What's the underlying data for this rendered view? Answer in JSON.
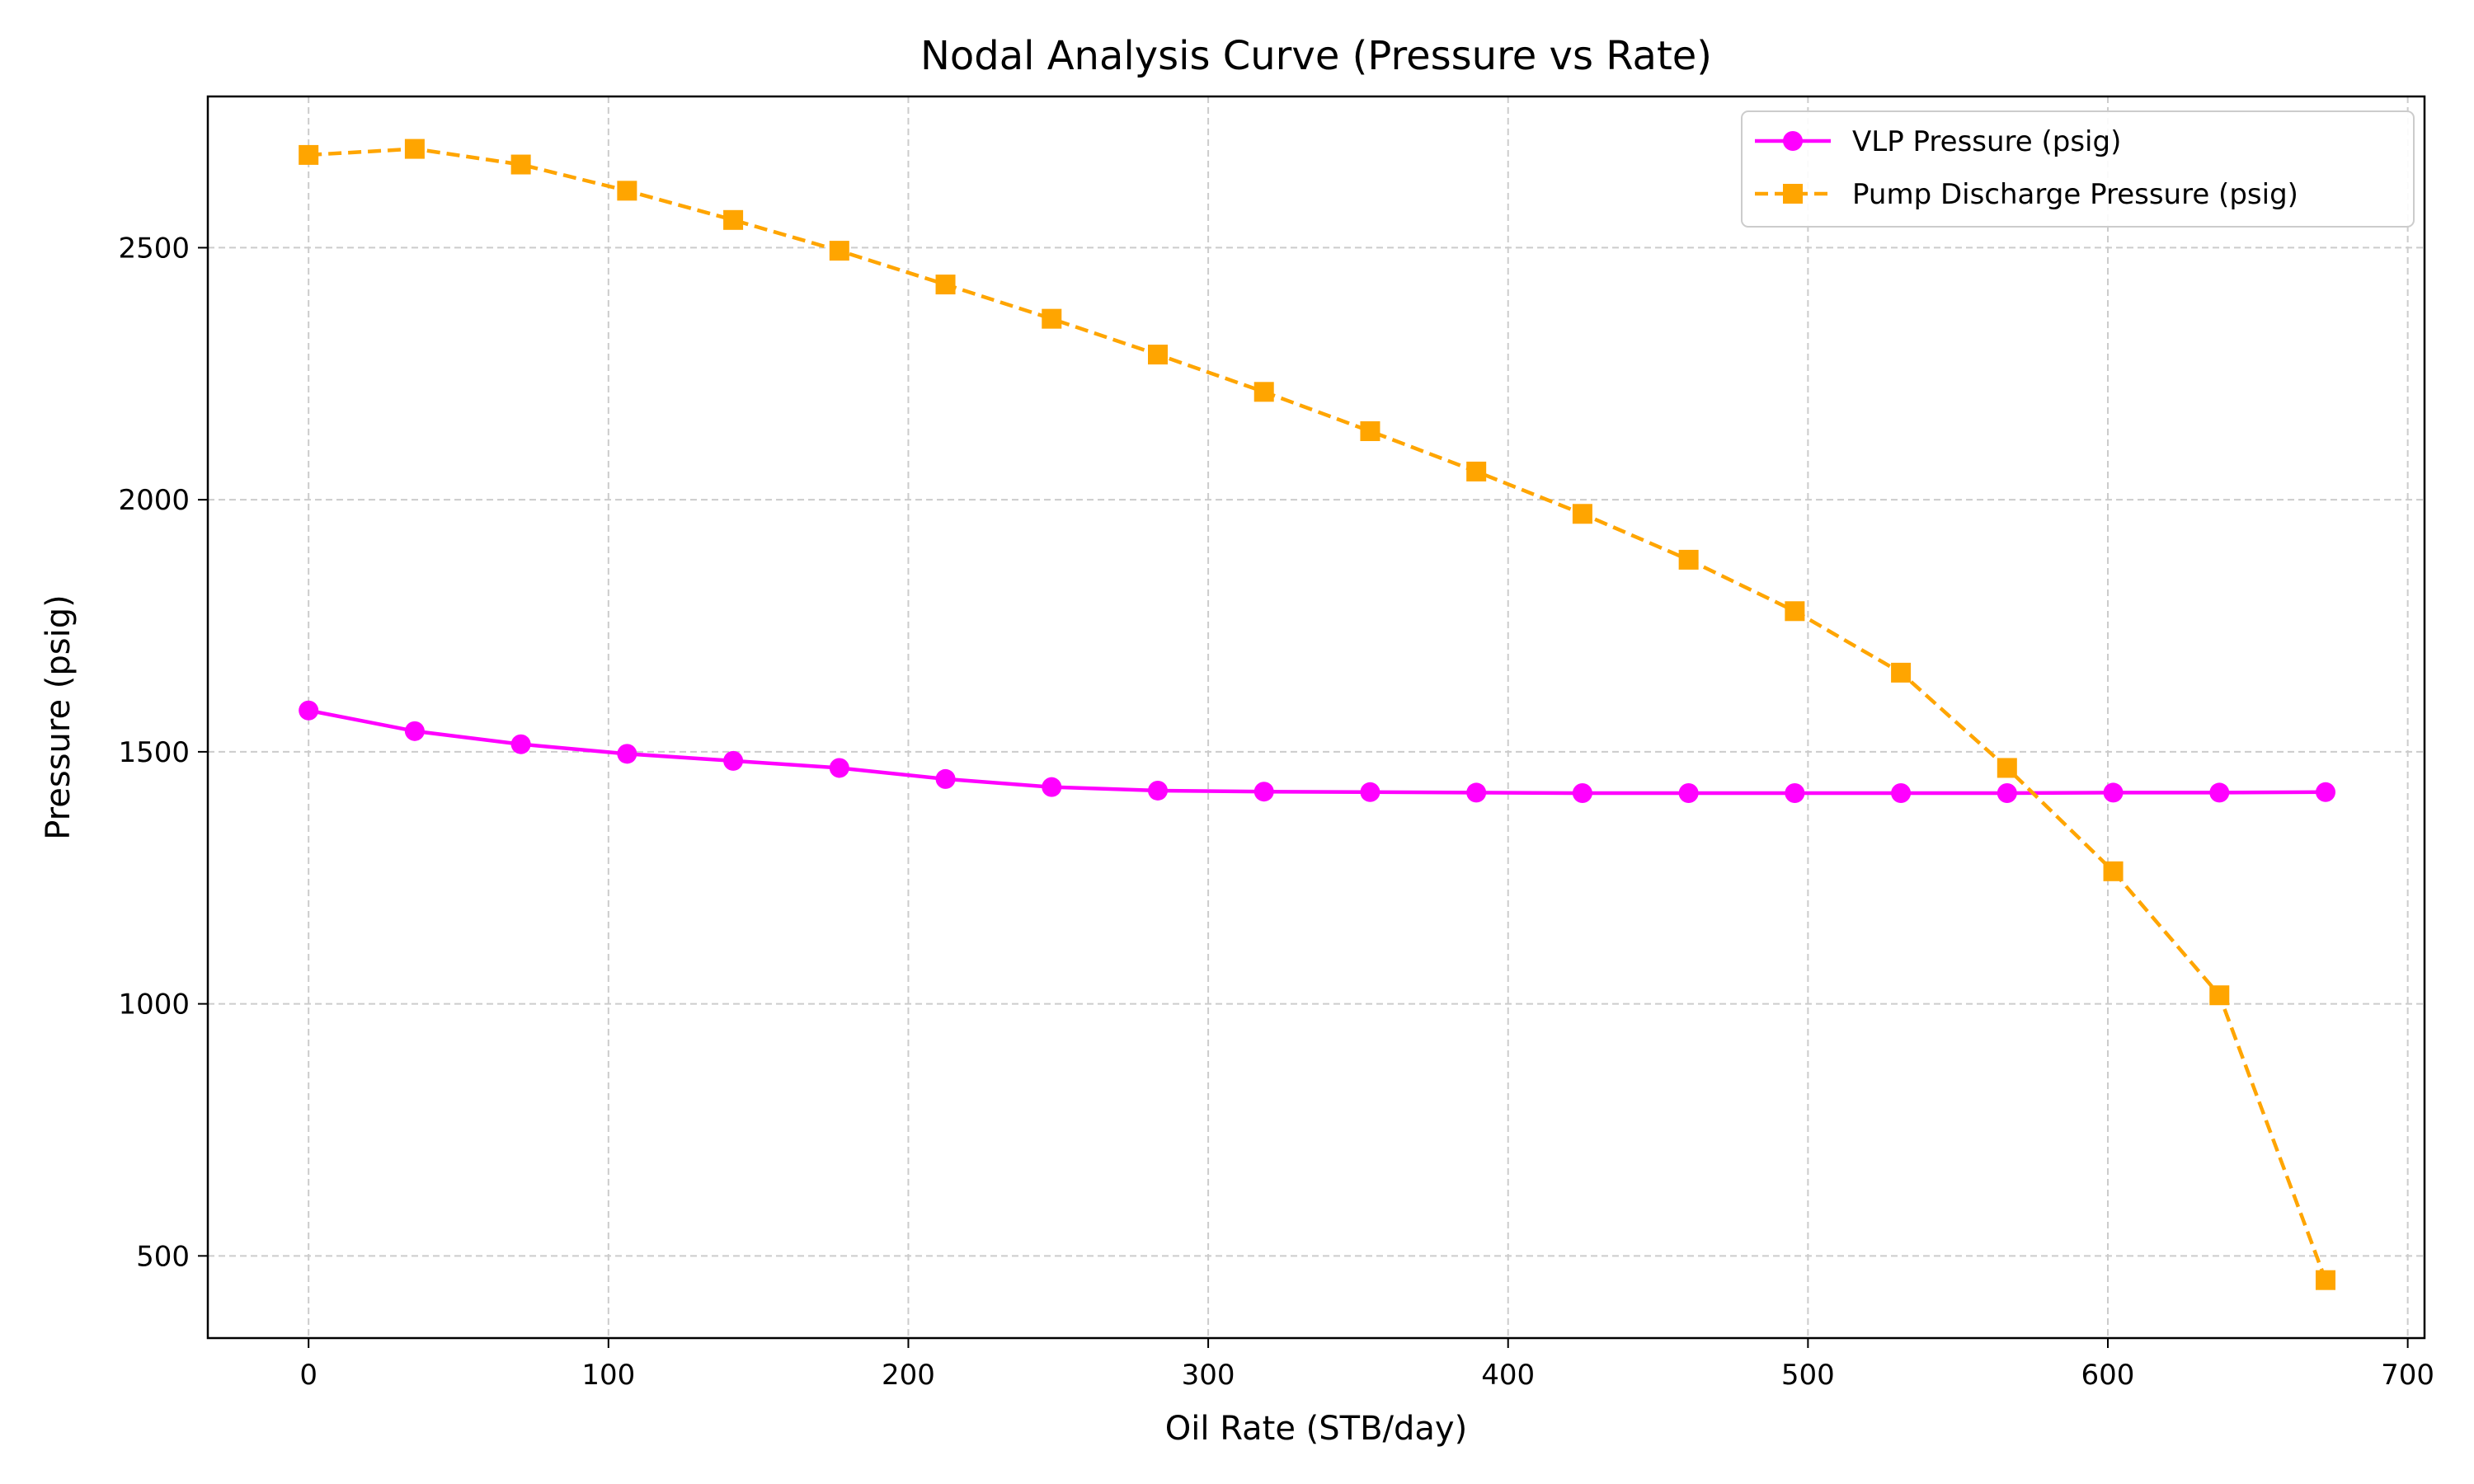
{
  "chart_data": {
    "type": "line",
    "title": "Nodal Analysis Curve (Pressure vs Rate)",
    "xlabel": "Oil Rate (STB/day)",
    "ylabel": "Pressure (psig)",
    "xlim": [
      -33.6,
      705.6
    ],
    "ylim": [
      337,
      2800
    ],
    "xticks": [
      0,
      100,
      200,
      300,
      400,
      500,
      600,
      700
    ],
    "yticks": [
      500,
      1000,
      1500,
      2000,
      2500
    ],
    "grid": true,
    "legend_position": "top-right",
    "x": [
      0,
      35.4,
      70.8,
      106.2,
      141.6,
      177,
      212.4,
      247.8,
      283.2,
      318.6,
      354,
      389.4,
      424.8,
      460.2,
      495.6,
      531,
      566.4,
      601.8,
      637.2,
      672.6
    ],
    "series": [
      {
        "name": "VLP Pressure (psig)",
        "color": "#ff00ff",
        "marker": "circle",
        "linestyle": "solid",
        "values": [
          1582,
          1541,
          1515,
          1496,
          1482,
          1468,
          1446,
          1430,
          1423,
          1421,
          1420,
          1419,
          1418,
          1418,
          1418,
          1418,
          1418,
          1419,
          1419,
          1420
        ]
      },
      {
        "name": "Pump Discharge Pressure (psig)",
        "color": "#ffa500",
        "marker": "square",
        "linestyle": "dashed",
        "values": [
          2684,
          2696,
          2665,
          2613,
          2555,
          2494,
          2427,
          2359,
          2288,
          2214,
          2136,
          2056,
          1972,
          1881,
          1779,
          1657,
          1468,
          1263,
          1017,
          452
        ]
      }
    ]
  }
}
